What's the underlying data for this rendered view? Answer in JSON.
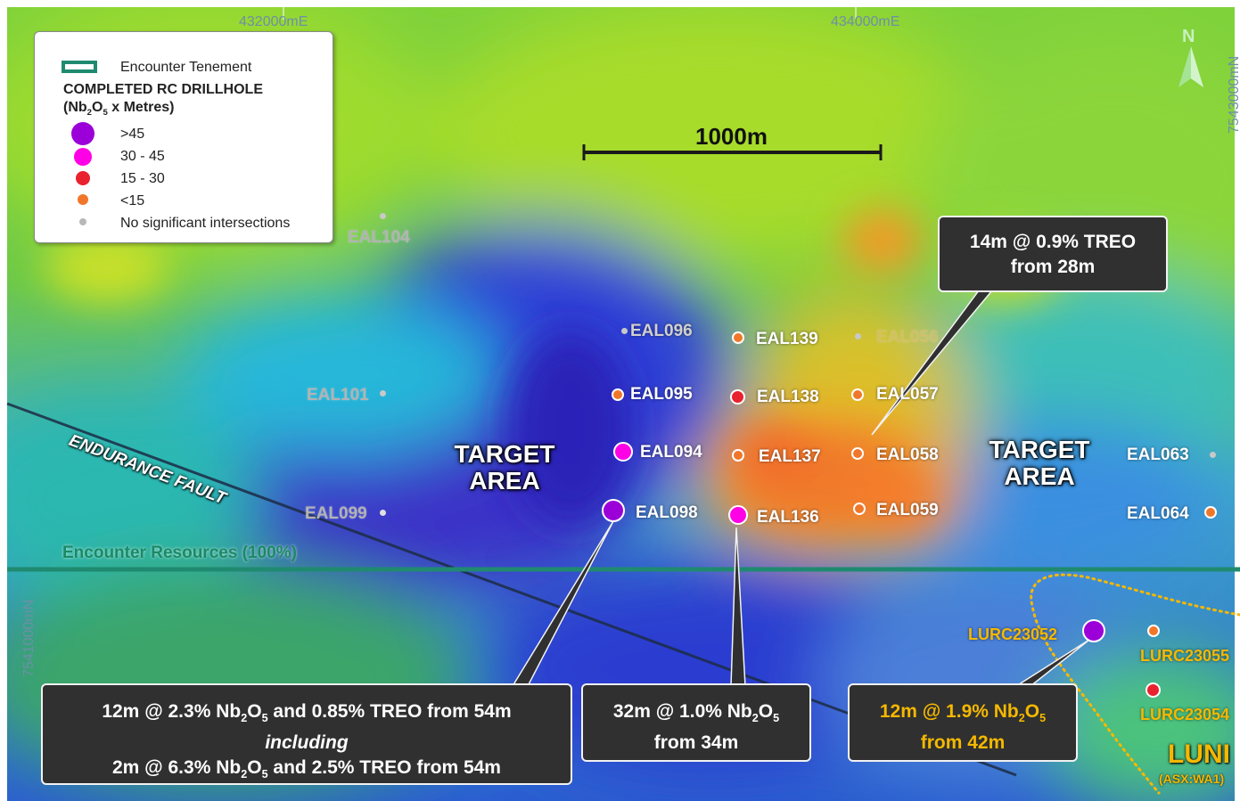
{
  "grid": {
    "easting_1": "432000mE",
    "easting_2": "434000mE",
    "northing_1": "7543000mN",
    "northing_2": "7541000mN"
  },
  "north_arrow": {
    "label": "N"
  },
  "scale_bar": {
    "label": "1000m"
  },
  "legend": {
    "tenement": "Encounter Tenement",
    "heading_line1": "COMPLETED RC DRILLHOLE",
    "heading_line2_prefix": "(Nb",
    "heading_line2_sub1": "2",
    "heading_line2_mid": "O",
    "heading_line2_sub2": "5",
    "heading_line2_suffix": " x Metres)",
    "classes": [
      {
        "label": ">45",
        "color": "#9b00d9"
      },
      {
        "label": "30 - 45",
        "color": "#ff00e6"
      },
      {
        "label": "15 - 30",
        "color": "#e8222e"
      },
      {
        "label": "<15",
        "color": "#f0772a"
      },
      {
        "label": "No significant intersections",
        "color": "#c8c8c8"
      }
    ]
  },
  "labels": {
    "fault": "ENDURANCE FAULT",
    "tenement_owner": "Encounter Resources (100%)",
    "target_area_1_line1": "TARGET",
    "target_area_1_line2": "AREA",
    "target_area_2_line1": "TARGET",
    "target_area_2_line2": "AREA",
    "luni": "LUNI",
    "luni_ticker": "(ASX:WA1)"
  },
  "drillholes": {
    "EAL104": "EAL104",
    "EAL096": "EAL096",
    "EAL139": "EAL139",
    "EAL056": "EAL056",
    "EAL101": "EAL101",
    "EAL095": "EAL095",
    "EAL138": "EAL138",
    "EAL057": "EAL057",
    "EAL094": "EAL094",
    "EAL137": "EAL137",
    "EAL058": "EAL058",
    "EAL063": "EAL063",
    "EAL099": "EAL099",
    "EAL098": "EAL098",
    "EAL136": "EAL136",
    "EAL059": "EAL059",
    "EAL064": "EAL064",
    "LURC23052": "LURC23052",
    "LURC23055": "LURC23055",
    "LURC23054": "LURC23054"
  },
  "callouts": {
    "treo_line1": "14m @ 0.9% TREO",
    "treo_line2": "from 28m",
    "eal098_line1_a": "12m @ 2.3% Nb",
    "eal098_line1_b": "O",
    "eal098_line1_c": " and 0.85% TREO from 54m",
    "eal098_line2": "including",
    "eal098_line3_a": "2m @ 6.3% Nb",
    "eal098_line3_b": "O",
    "eal098_line3_c": " and 2.5% TREO from 54m",
    "eal136_line1_a": "32m @ 1.0% Nb",
    "eal136_line1_b": "O",
    "eal136_line2": "from 34m",
    "lurc_line1_a": "12m @ 1.9% Nb",
    "lurc_line1_b": "O",
    "lurc_line2": "from 42m",
    "sub2": "2",
    "sub5": "5"
  },
  "colors": {
    "tenement_line": "#1f8a70",
    "luni_boundary": "#f5b800",
    "purple": "#9b00d9",
    "magenta": "#ff00e6",
    "red": "#e8222e",
    "orange": "#f0772a",
    "grey": "#c8c8c8"
  }
}
